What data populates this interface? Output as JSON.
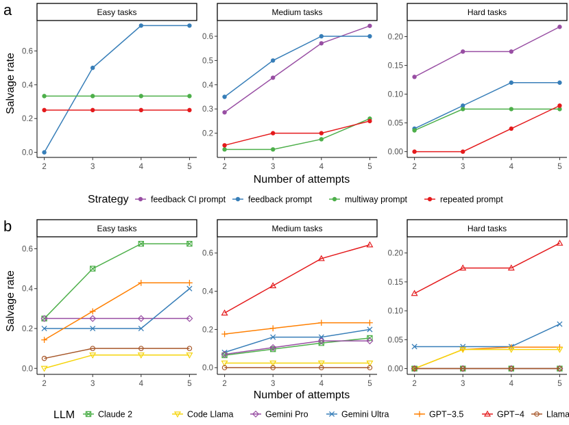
{
  "figure": {
    "panel_a_letter": "a",
    "panel_b_letter": "b",
    "ylabel": "Salvage rate",
    "xlabel": "Number of attempts",
    "legend_a_title": "Strategy",
    "legend_b_title": "LLM"
  },
  "colors": {
    "feedback_ci": "#984ea3",
    "feedback": "#377eb8",
    "multiway": "#4daf4a",
    "repeated": "#e41a1c",
    "claude2": "#4daf4a",
    "codellama": "#f5d40a",
    "geminipro": "#984ea3",
    "geminiultra": "#377eb8",
    "gpt35": "#ff7f00",
    "gpt4": "#e41a1c",
    "llama2": "#a65628"
  },
  "chart_data": [
    {
      "type": "line",
      "id": "a",
      "legend_title": "Strategy",
      "x": [
        2,
        3,
        4,
        5
      ],
      "xlabel": "Number of attempts",
      "ylabel": "Salvage rate",
      "series_legend": [
        {
          "key": "feedback_ci",
          "name": "feedback CI prompt",
          "color": "#984ea3",
          "marker": "circle"
        },
        {
          "key": "feedback",
          "name": "feedback prompt",
          "color": "#377eb8",
          "marker": "circle"
        },
        {
          "key": "multiway",
          "name": "multiway prompt",
          "color": "#4daf4a",
          "marker": "circle"
        },
        {
          "key": "repeated",
          "name": "repeated prompt",
          "color": "#e41a1c",
          "marker": "circle"
        }
      ],
      "facets": [
        {
          "title": "Easy tasks",
          "ylim": [
            -0.03,
            0.78
          ],
          "yticks": [
            0.0,
            0.2,
            0.4,
            0.6
          ],
          "ytick_labels": [
            "0.0",
            "0.2",
            "0.4",
            "0.6"
          ],
          "series": [
            {
              "key": "feedback",
              "values": [
                0.0,
                0.5,
                0.75,
                0.75
              ]
            },
            {
              "key": "multiway",
              "values": [
                0.333,
                0.333,
                0.333,
                0.333
              ]
            },
            {
              "key": "repeated",
              "values": [
                0.25,
                0.25,
                0.25,
                0.25
              ]
            }
          ]
        },
        {
          "title": "Medium tasks",
          "ylim": [
            0.1,
            0.665
          ],
          "yticks": [
            0.2,
            0.3,
            0.4,
            0.5,
            0.6
          ],
          "ytick_labels": [
            "0.2",
            "0.3",
            "0.4",
            "0.5",
            "0.6"
          ],
          "series": [
            {
              "key": "feedback_ci",
              "values": [
                0.286,
                0.429,
                0.571,
                0.643
              ]
            },
            {
              "key": "feedback",
              "values": [
                0.35,
                0.5,
                0.6,
                0.6
              ]
            },
            {
              "key": "multiway",
              "values": [
                0.133,
                0.133,
                0.175,
                0.26
              ]
            },
            {
              "key": "repeated",
              "values": [
                0.15,
                0.2,
                0.2,
                0.25
              ]
            }
          ]
        },
        {
          "title": "Hard tasks",
          "ylim": [
            -0.01,
            0.228
          ],
          "yticks": [
            0.0,
            0.05,
            0.1,
            0.15,
            0.2
          ],
          "ytick_labels": [
            "0.00",
            "0.05",
            "0.10",
            "0.15",
            "0.20"
          ],
          "series": [
            {
              "key": "feedback_ci",
              "values": [
                0.13,
                0.174,
                0.174,
                0.217
              ]
            },
            {
              "key": "feedback",
              "values": [
                0.04,
                0.08,
                0.12,
                0.12
              ]
            },
            {
              "key": "multiway",
              "values": [
                0.037,
                0.074,
                0.074,
                0.074
              ]
            },
            {
              "key": "repeated",
              "values": [
                0.0,
                0.0,
                0.04,
                0.08
              ]
            }
          ]
        }
      ]
    },
    {
      "type": "line",
      "id": "b",
      "legend_title": "LLM",
      "x": [
        2,
        3,
        4,
        5
      ],
      "xlabel": "Number of attempts",
      "ylabel": "Salvage rate",
      "series_legend": [
        {
          "key": "claude2",
          "name": "Claude 2",
          "color": "#4daf4a",
          "marker": "square-x"
        },
        {
          "key": "codellama",
          "name": "Code Llama",
          "color": "#f5d40a",
          "marker": "triangle-down"
        },
        {
          "key": "geminipro",
          "name": "Gemini Pro",
          "color": "#984ea3",
          "marker": "diamond"
        },
        {
          "key": "geminiultra",
          "name": "Gemini Ultra",
          "color": "#377eb8",
          "marker": "x"
        },
        {
          "key": "gpt35",
          "name": "GPT−3.5",
          "color": "#ff7f00",
          "marker": "plus"
        },
        {
          "key": "gpt4",
          "name": "GPT−4",
          "color": "#e41a1c",
          "marker": "triangle-up"
        },
        {
          "key": "llama2",
          "name": "Llama 2",
          "color": "#a65628",
          "marker": "circle-open"
        }
      ],
      "facets": [
        {
          "title": "Easy tasks",
          "ylim": [
            -0.03,
            0.66
          ],
          "yticks": [
            0.0,
            0.2,
            0.4,
            0.6
          ],
          "ytick_labels": [
            "0.0",
            "0.2",
            "0.4",
            "0.6"
          ],
          "series": [
            {
              "key": "claude2",
              "values": [
                0.25,
                0.5,
                0.625,
                0.625
              ]
            },
            {
              "key": "codellama",
              "values": [
                0.0,
                0.067,
                0.067,
                0.067
              ]
            },
            {
              "key": "geminipro",
              "values": [
                0.25,
                0.25,
                0.25,
                0.25
              ]
            },
            {
              "key": "geminiultra",
              "values": [
                0.2,
                0.2,
                0.2,
                0.4
              ]
            },
            {
              "key": "gpt35",
              "values": [
                0.143,
                0.286,
                0.429,
                0.429
              ]
            },
            {
              "key": "llama2",
              "values": [
                0.05,
                0.1,
                0.1,
                0.1
              ]
            }
          ]
        },
        {
          "title": "Medium tasks",
          "ylim": [
            -0.035,
            0.685
          ],
          "yticks": [
            0.0,
            0.2,
            0.4,
            0.6
          ],
          "ytick_labels": [
            "0.0",
            "0.2",
            "0.4",
            "0.6"
          ],
          "series": [
            {
              "key": "gpt4",
              "values": [
                0.286,
                0.429,
                0.571,
                0.643
              ]
            },
            {
              "key": "gpt35",
              "values": [
                0.176,
                0.206,
                0.235,
                0.235
              ]
            },
            {
              "key": "geminiultra",
              "values": [
                0.08,
                0.16,
                0.16,
                0.2
              ]
            },
            {
              "key": "claude2",
              "values": [
                0.065,
                0.097,
                0.129,
                0.155
              ]
            },
            {
              "key": "geminipro",
              "values": [
                0.07,
                0.105,
                0.14,
                0.14
              ]
            },
            {
              "key": "codellama",
              "values": [
                0.024,
                0.024,
                0.024,
                0.024
              ]
            },
            {
              "key": "llama2",
              "values": [
                0.0,
                0.0,
                0.0,
                0.0
              ]
            }
          ]
        },
        {
          "title": "Hard tasks",
          "ylim": [
            -0.01,
            0.228
          ],
          "yticks": [
            0.0,
            0.05,
            0.1,
            0.15,
            0.2
          ],
          "ytick_labels": [
            "0.00",
            "0.05",
            "0.10",
            "0.15",
            "0.20"
          ],
          "series": [
            {
              "key": "gpt4",
              "values": [
                0.13,
                0.174,
                0.174,
                0.217
              ]
            },
            {
              "key": "geminiultra",
              "values": [
                0.038,
                0.038,
                0.038,
                0.077
              ]
            },
            {
              "key": "gpt35",
              "values": [
                0.0,
                0.033,
                0.037,
                0.037
              ]
            },
            {
              "key": "codellama",
              "values": [
                0.0,
                0.033,
                0.033,
                0.033
              ]
            },
            {
              "key": "claude2",
              "values": [
                0.0,
                0.0,
                0.0,
                0.0
              ]
            },
            {
              "key": "geminipro",
              "values": [
                0.0,
                0.0,
                0.0,
                0.0
              ]
            },
            {
              "key": "llama2",
              "values": [
                0.0,
                0.0,
                0.0,
                0.0
              ]
            }
          ]
        }
      ]
    }
  ]
}
